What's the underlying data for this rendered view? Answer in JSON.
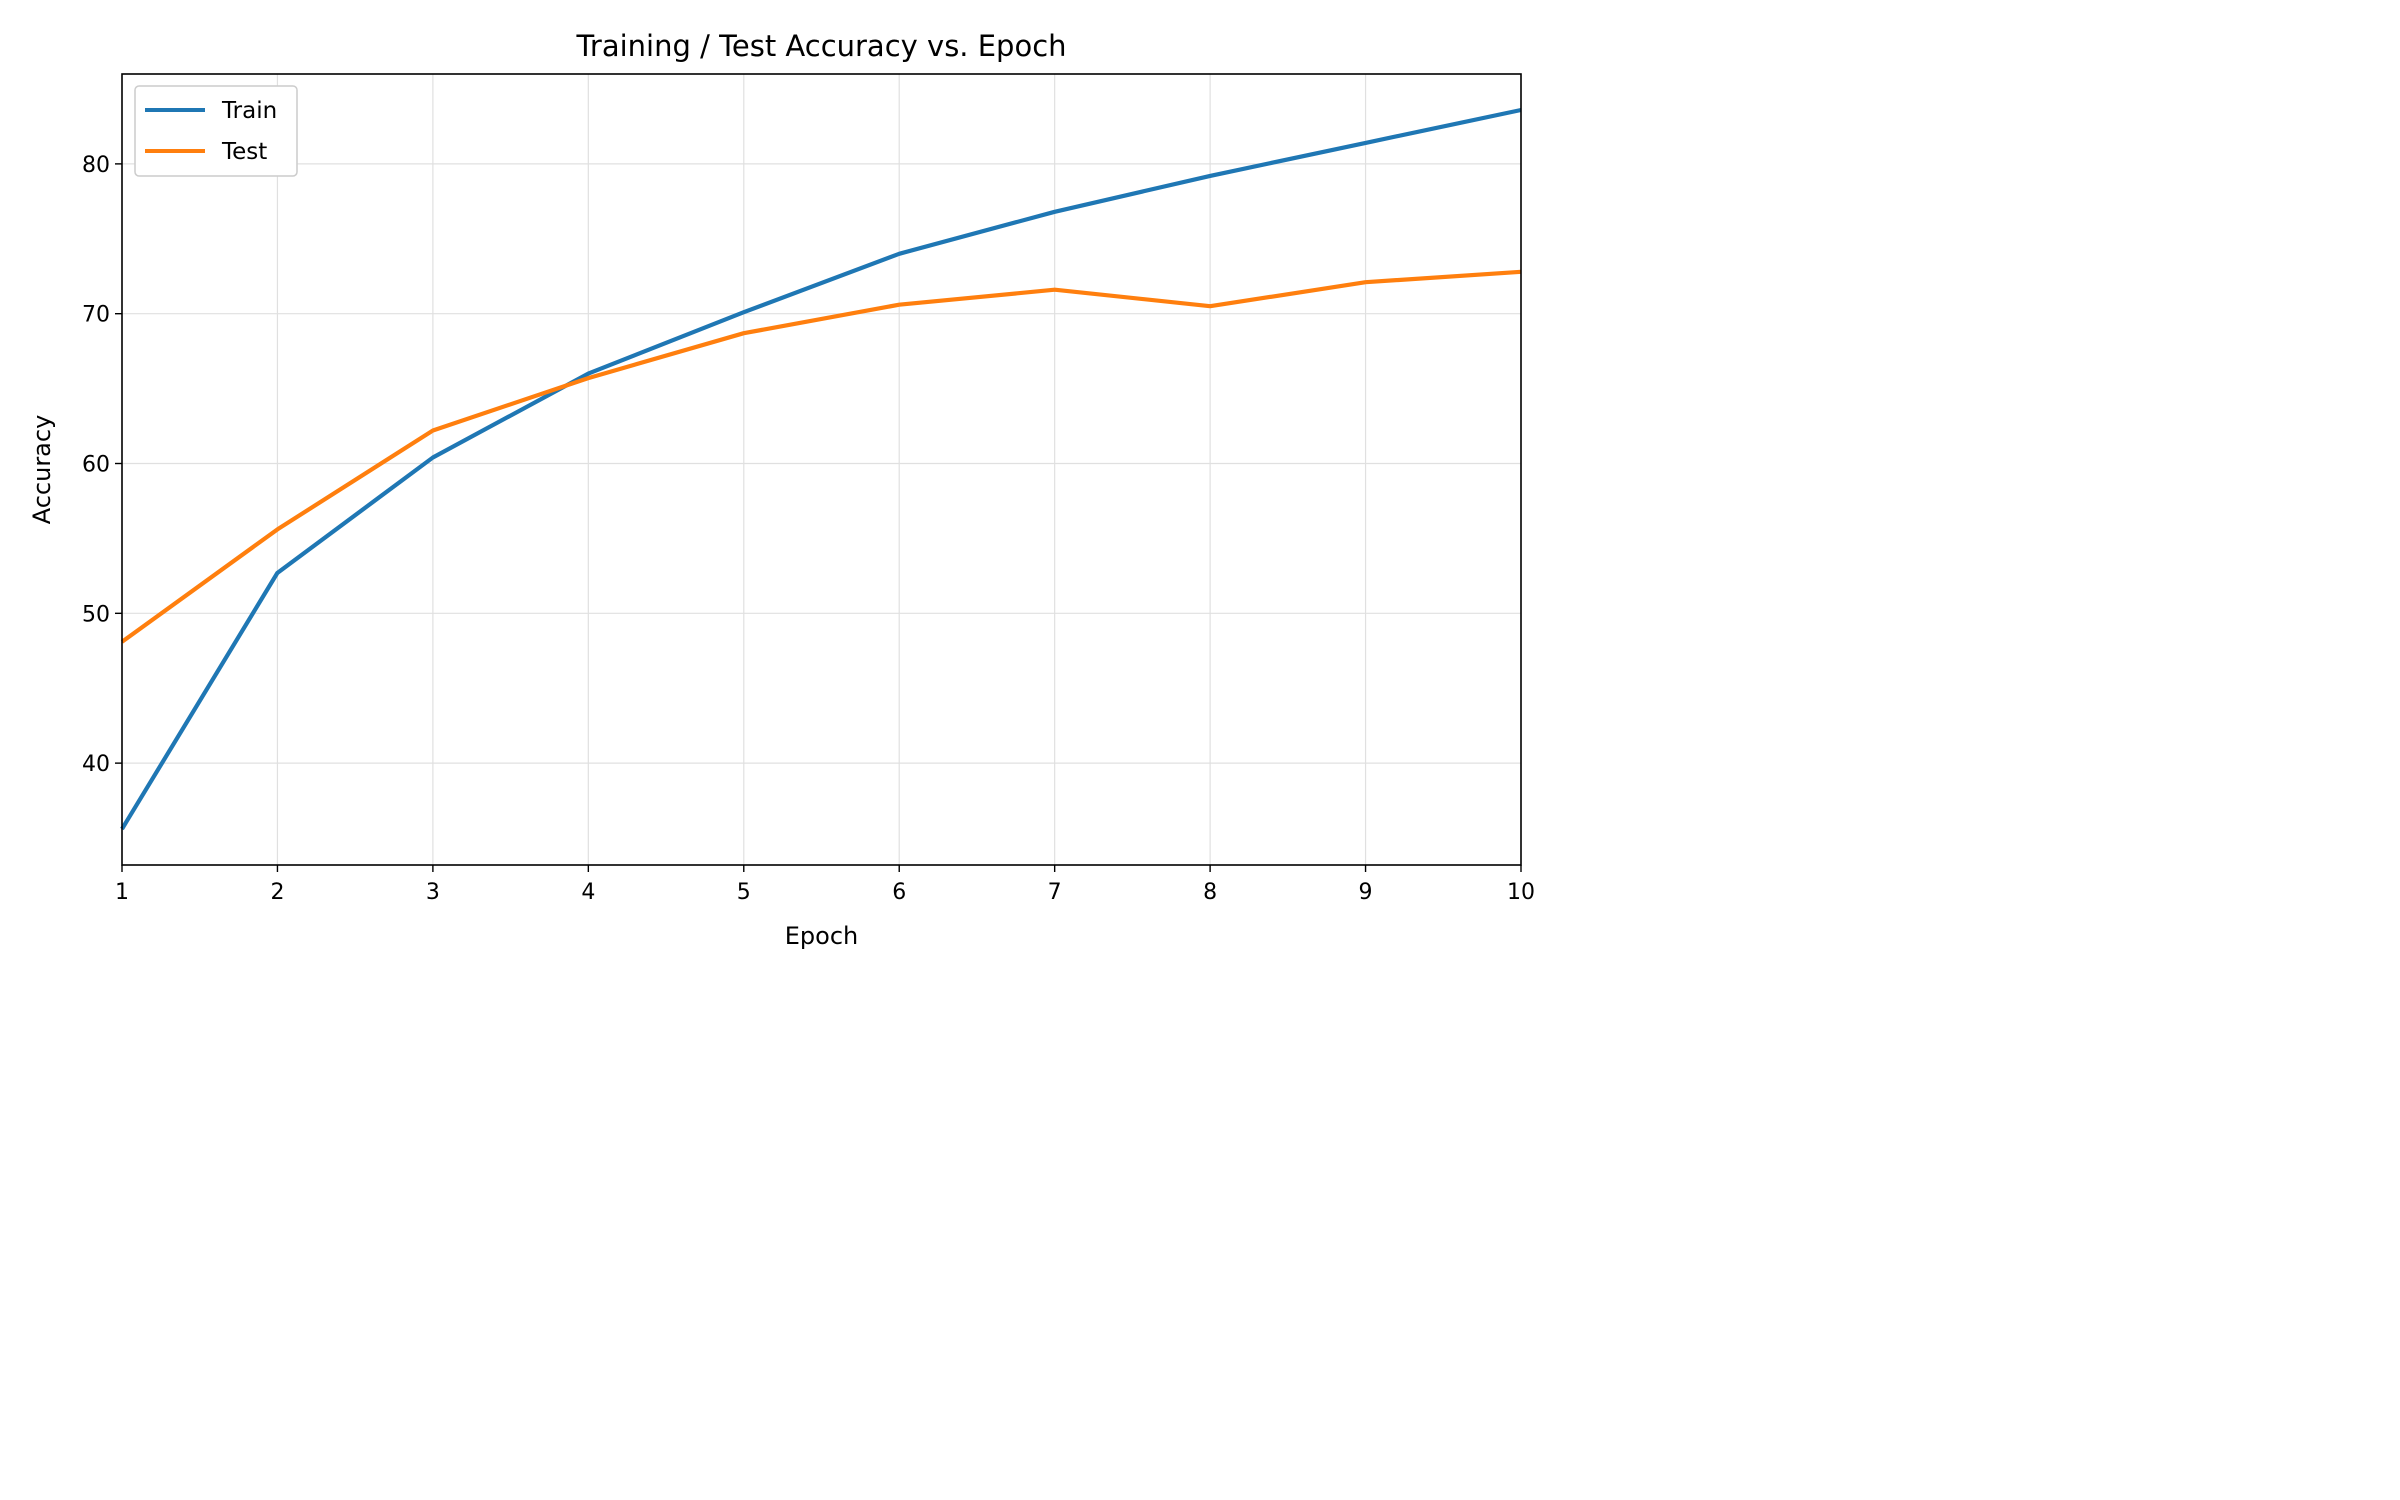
{
  "colors": {
    "train": "#1f77b4",
    "test": "#ff7f0e",
    "grid": "#e0e0e0",
    "axis": "#000000"
  },
  "chart_data": {
    "type": "line",
    "title": "Training / Test Accuracy vs. Epoch",
    "xlabel": "Epoch",
    "ylabel": "Accuracy",
    "x": [
      1,
      2,
      3,
      4,
      5,
      6,
      7,
      8,
      9,
      10
    ],
    "series": [
      {
        "name": "Train",
        "color": "#1f77b4",
        "values": [
          35.6,
          52.7,
          60.4,
          66.0,
          70.1,
          74.0,
          76.8,
          79.2,
          81.4,
          83.6
        ]
      },
      {
        "name": "Test",
        "color": "#ff7f0e",
        "values": [
          48.1,
          55.6,
          62.2,
          65.7,
          68.7,
          70.6,
          71.6,
          70.5,
          72.1,
          72.8
        ]
      }
    ],
    "xlim": [
      1,
      10
    ],
    "ylim": [
      33.2,
      86.0
    ],
    "xticks": [
      1,
      2,
      3,
      4,
      5,
      6,
      7,
      8,
      9,
      10
    ],
    "yticks": [
      40,
      50,
      60,
      70,
      80
    ],
    "grid": true,
    "legend_position": "upper-left"
  }
}
